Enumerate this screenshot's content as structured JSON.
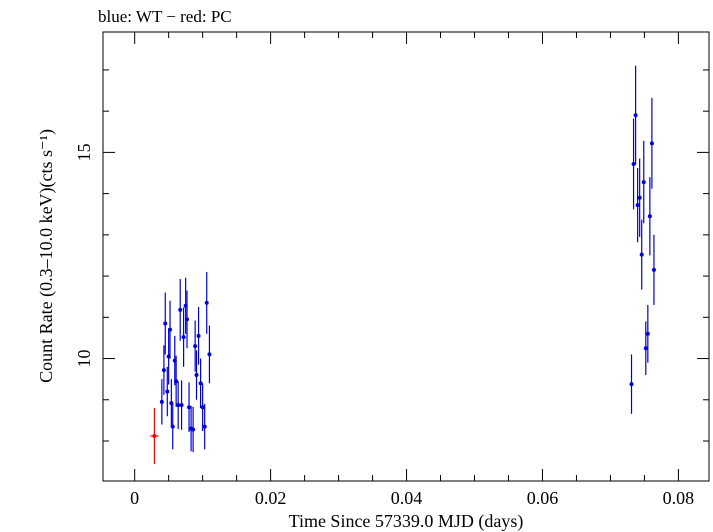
{
  "chart_data": {
    "type": "scatter",
    "title": "blue: WT − red: PC",
    "xlabel": "Time Since 57339.0 MJD (days)",
    "ylabel": "Count Rate (0.3–10.0 keV)(cts s⁻¹)",
    "xlim": [
      -0.00466,
      0.0845
    ],
    "ylim": [
      7.03,
      17.92
    ],
    "x_ticks": [
      {
        "value": 0,
        "label": "0"
      },
      {
        "value": 0.02,
        "label": "0.02"
      },
      {
        "value": 0.04,
        "label": "0.04"
      },
      {
        "value": 0.06,
        "label": "0.06"
      },
      {
        "value": 0.08,
        "label": "0.08"
      }
    ],
    "y_ticks": [
      {
        "value": 10,
        "label": "10"
      },
      {
        "value": 15,
        "label": "15"
      }
    ],
    "grid": false,
    "series": [
      {
        "name": "WT",
        "color": "#0000dd",
        "points": [
          {
            "x": 0.004,
            "y": 8.95,
            "err": 0.55
          },
          {
            "x": 0.0043,
            "y": 9.72,
            "err": 0.6
          },
          {
            "x": 0.0045,
            "y": 10.85,
            "err": 0.75
          },
          {
            "x": 0.0048,
            "y": 9.2,
            "err": 0.6
          },
          {
            "x": 0.005,
            "y": 10.05,
            "err": 0.68
          },
          {
            "x": 0.0052,
            "y": 10.7,
            "err": 0.7
          },
          {
            "x": 0.0054,
            "y": 8.92,
            "err": 0.58
          },
          {
            "x": 0.0056,
            "y": 8.35,
            "err": 0.55
          },
          {
            "x": 0.0059,
            "y": 9.95,
            "err": 0.6
          },
          {
            "x": 0.0061,
            "y": 9.45,
            "err": 0.62
          },
          {
            "x": 0.0064,
            "y": 8.87,
            "err": 0.58
          },
          {
            "x": 0.0067,
            "y": 11.18,
            "err": 0.75
          },
          {
            "x": 0.0069,
            "y": 8.87,
            "err": 0.6
          },
          {
            "x": 0.0072,
            "y": 10.52,
            "err": 0.72
          },
          {
            "x": 0.0075,
            "y": 11.28,
            "err": 0.68
          },
          {
            "x": 0.0077,
            "y": 10.95,
            "err": 0.7
          },
          {
            "x": 0.008,
            "y": 8.82,
            "err": 0.6
          },
          {
            "x": 0.0083,
            "y": 8.3,
            "err": 0.55
          },
          {
            "x": 0.0086,
            "y": 8.28,
            "err": 0.55
          },
          {
            "x": 0.0089,
            "y": 10.3,
            "err": 0.62
          },
          {
            "x": 0.0091,
            "y": 9.6,
            "err": 0.6
          },
          {
            "x": 0.0094,
            "y": 10.55,
            "err": 0.7
          },
          {
            "x": 0.0097,
            "y": 9.4,
            "err": 0.6
          },
          {
            "x": 0.01,
            "y": 8.82,
            "err": 0.58
          },
          {
            "x": 0.0103,
            "y": 8.35,
            "err": 0.55
          },
          {
            "x": 0.0106,
            "y": 11.35,
            "err": 0.75
          },
          {
            "x": 0.011,
            "y": 10.1,
            "err": 0.7
          },
          {
            "x": 0.0731,
            "y": 9.38,
            "err": 0.72
          },
          {
            "x": 0.0734,
            "y": 14.72,
            "err": 1.1
          },
          {
            "x": 0.0737,
            "y": 15.9,
            "err": 1.2
          },
          {
            "x": 0.074,
            "y": 13.72,
            "err": 0.9
          },
          {
            "x": 0.0743,
            "y": 13.9,
            "err": 0.95
          },
          {
            "x": 0.0746,
            "y": 12.52,
            "err": 0.85
          },
          {
            "x": 0.0749,
            "y": 14.28,
            "err": 1.0
          },
          {
            "x": 0.0752,
            "y": 10.25,
            "err": 0.65
          },
          {
            "x": 0.0755,
            "y": 10.6,
            "err": 0.7
          },
          {
            "x": 0.0758,
            "y": 13.45,
            "err": 0.95
          },
          {
            "x": 0.0761,
            "y": 15.22,
            "err": 1.1
          },
          {
            "x": 0.0764,
            "y": 12.15,
            "err": 0.85
          }
        ]
      },
      {
        "name": "PC",
        "color": "#ff0000",
        "points": [
          {
            "x": 0.0029,
            "y": 8.12,
            "err": 0.68,
            "xerr": 0.0006
          }
        ]
      }
    ]
  }
}
